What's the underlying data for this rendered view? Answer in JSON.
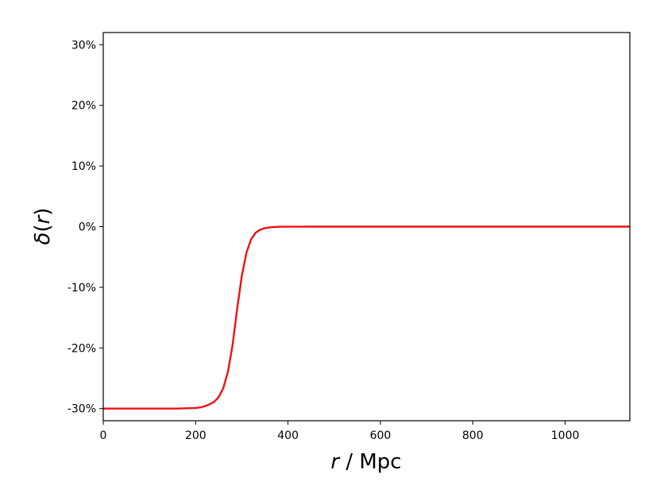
{
  "chart_data": {
    "type": "line",
    "title": "",
    "xlabel_var": "r",
    "xlabel_unit": " / Mpc",
    "ylabel_var": "δ",
    "ylabel_open": "(",
    "ylabel_arg": "r",
    "ylabel_close": ")",
    "xlim": [
      0,
      1140
    ],
    "ylim": [
      -32,
      32
    ],
    "xticks": [
      0,
      200,
      400,
      600,
      800,
      1000
    ],
    "xtick_labels": [
      "0",
      "200",
      "400",
      "600",
      "800",
      "1000"
    ],
    "yticks": [
      -30,
      -20,
      -10,
      0,
      10,
      20,
      30
    ],
    "ytick_labels": [
      "-30%",
      "-20%",
      "-10%",
      "0%",
      "10%",
      "20%",
      "30%"
    ],
    "grid": false,
    "series": [
      {
        "color": "#ee1111",
        "x": [
          0,
          100,
          160,
          180,
          200,
          210,
          220,
          230,
          240,
          250,
          260,
          270,
          280,
          290,
          300,
          310,
          320,
          330,
          340,
          350,
          360,
          370,
          380,
          390,
          400,
          420,
          440,
          460,
          500,
          600,
          800,
          1000,
          1140
        ],
        "y": [
          -30,
          -30,
          -30,
          -29.95,
          -29.9,
          -29.8,
          -29.6,
          -29.3,
          -28.9,
          -28.1,
          -26.6,
          -23.9,
          -19.5,
          -13.5,
          -8.1,
          -4.3,
          -2.1,
          -1.0,
          -0.5,
          -0.25,
          -0.12,
          -0.06,
          -0.03,
          -0.015,
          -0.008,
          -0.003,
          -0.001,
          0,
          0,
          0,
          0,
          0,
          0
        ]
      }
    ]
  }
}
